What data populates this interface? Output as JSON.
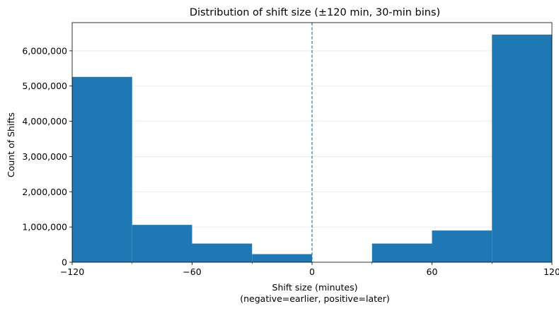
{
  "chart_data": {
    "type": "bar",
    "title": "Distribution of shift size (±120 min, 30-min bins)",
    "xlabel_line1": "Shift size (minutes)",
    "xlabel_line2": "(negative=earlier, positive=later)",
    "ylabel": "Count of Shifts",
    "xlim": [
      -120,
      120
    ],
    "ylim": [
      0,
      6800000
    ],
    "bins": [
      {
        "start": -120,
        "end": -90,
        "count": 5260000
      },
      {
        "start": -90,
        "end": -60,
        "count": 1060000
      },
      {
        "start": -60,
        "end": -30,
        "count": 530000
      },
      {
        "start": -30,
        "end": 0,
        "count": 230000
      },
      {
        "start": 0,
        "end": 30,
        "count": 0
      },
      {
        "start": 30,
        "end": 60,
        "count": 530000
      },
      {
        "start": 60,
        "end": 90,
        "count": 900000
      },
      {
        "start": 90,
        "end": 120,
        "count": 6460000
      }
    ],
    "x_ticks": [
      {
        "value": -120,
        "label": "−120"
      },
      {
        "value": -60,
        "label": "−60"
      },
      {
        "value": 0,
        "label": "0"
      },
      {
        "value": 60,
        "label": "60"
      },
      {
        "value": 120,
        "label": "120"
      }
    ],
    "x_minor_ticks": [
      -90,
      -30,
      30,
      90
    ],
    "y_ticks": [
      {
        "value": 0,
        "label": "0"
      },
      {
        "value": 1000000,
        "label": "1,000,000"
      },
      {
        "value": 2000000,
        "label": "2,000,000"
      },
      {
        "value": 3000000,
        "label": "3,000,000"
      },
      {
        "value": 4000000,
        "label": "4,000,000"
      },
      {
        "value": 5000000,
        "label": "5,000,000"
      },
      {
        "value": 6000000,
        "label": "6,000,000"
      }
    ],
    "reference_line_x": 0,
    "grid": "horizontal",
    "colors": {
      "bar": "#1f77b4",
      "reference_line": "#1f77b4",
      "grid": "#e6e6e6",
      "axis": "#000000"
    }
  }
}
